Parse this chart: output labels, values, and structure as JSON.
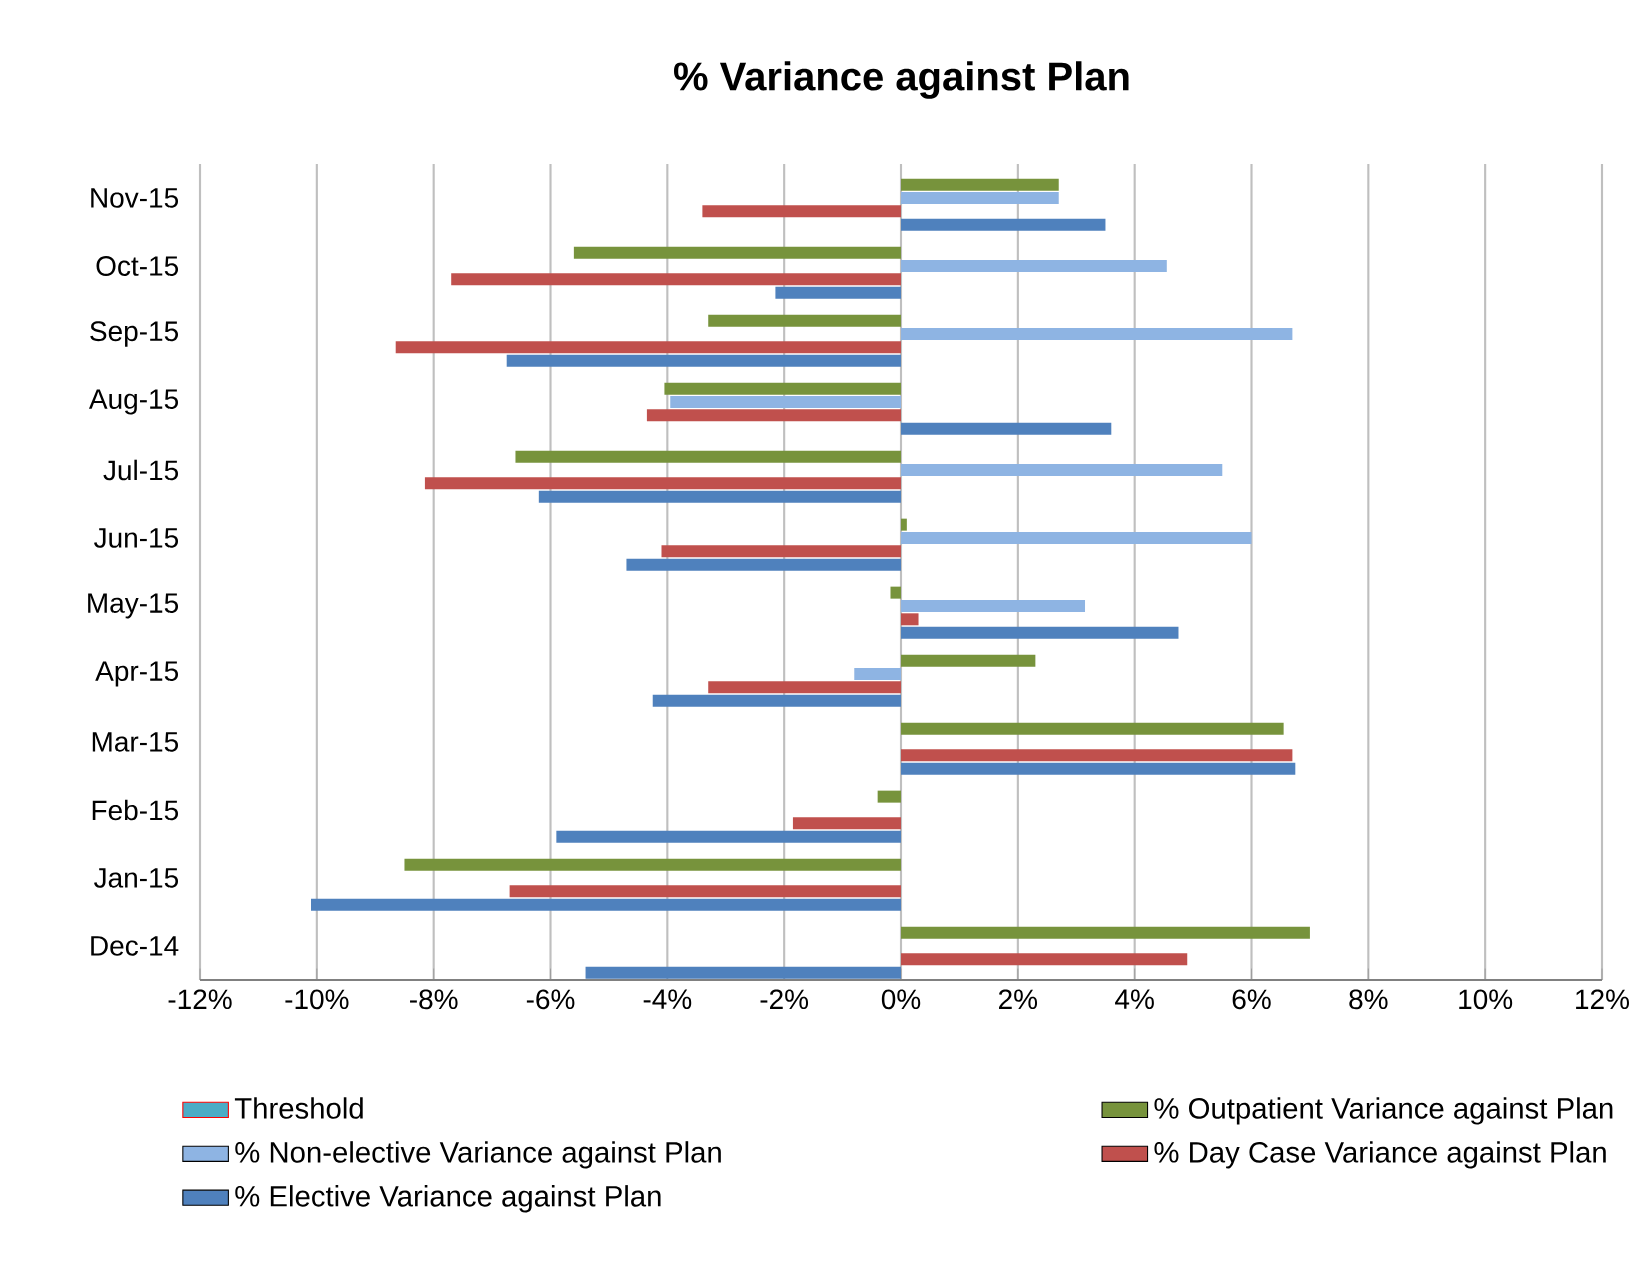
{
  "chart_data": {
    "type": "bar",
    "orientation": "horizontal",
    "title": "% Variance against Plan",
    "categories": [
      "Nov-15",
      "Oct-15",
      "Sep-15",
      "Aug-15",
      "Jul-15",
      "Jun-15",
      "May-15",
      "Apr-15",
      "Mar-15",
      "Feb-15",
      "Jan-15",
      "Dec-14"
    ],
    "series": [
      {
        "name": "Threshold",
        "color": "#4bacc6",
        "values": [
          null,
          null,
          null,
          null,
          null,
          null,
          null,
          null,
          null,
          null,
          null,
          null
        ]
      },
      {
        "name": "% Outpatient Variance against Plan",
        "color": "#77933c",
        "values": [
          2.7,
          -5.6,
          -3.3,
          -4.05,
          -6.6,
          0.1,
          -0.18,
          2.3,
          6.55,
          -0.4,
          -8.5,
          7.0
        ]
      },
      {
        "name": "% Non-elective Variance against Plan",
        "color": "#8eb4e3",
        "values": [
          2.7,
          4.55,
          6.7,
          -3.95,
          5.5,
          6.0,
          3.15,
          -0.8,
          null,
          null,
          null,
          null
        ]
      },
      {
        "name": "% Day Case Variance against Plan",
        "color": "#c0504d",
        "values": [
          -3.4,
          -7.7,
          -8.65,
          -4.35,
          -8.15,
          -4.1,
          0.3,
          -3.3,
          6.7,
          -1.85,
          -6.7,
          4.9
        ]
      },
      {
        "name": "% Elective Variance against Plan",
        "color": "#4f81bd",
        "values": [
          3.5,
          -2.15,
          -6.75,
          3.6,
          -6.2,
          -4.7,
          4.75,
          -4.25,
          6.75,
          -5.9,
          -10.1,
          -5.4
        ]
      }
    ],
    "xlim": [
      -12,
      12
    ],
    "xticks": [
      {
        "value": -12,
        "label": "-12%"
      },
      {
        "value": -10,
        "label": "-10%"
      },
      {
        "value": -8,
        "label": "-8%"
      },
      {
        "value": -6,
        "label": "-6%"
      },
      {
        "value": -4,
        "label": "-4%"
      },
      {
        "value": -2,
        "label": "-2%"
      },
      {
        "value": 0,
        "label": "0%"
      },
      {
        "value": 2,
        "label": "2%"
      },
      {
        "value": 4,
        "label": "4%"
      },
      {
        "value": 6,
        "label": "6%"
      },
      {
        "value": 8,
        "label": "8%"
      },
      {
        "value": 10,
        "label": "10%"
      },
      {
        "value": 12,
        "label": "12%"
      }
    ],
    "grid": "x",
    "legend": "bottom"
  }
}
